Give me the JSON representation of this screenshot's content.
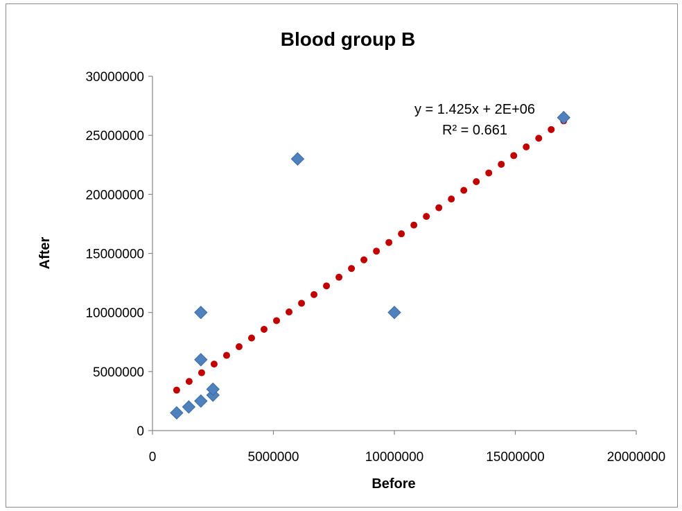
{
  "chart_data": {
    "type": "scatter",
    "title": "Blood group B",
    "xlabel": "Before",
    "ylabel": "After",
    "xlim": [
      0,
      20000000
    ],
    "ylim": [
      0,
      30000000
    ],
    "x_ticks": [
      0,
      5000000,
      10000000,
      15000000,
      20000000
    ],
    "y_ticks": [
      0,
      5000000,
      10000000,
      15000000,
      20000000,
      25000000,
      30000000
    ],
    "x_tick_labels": [
      "0",
      "5000000",
      "10000000",
      "15000000",
      "20000000"
    ],
    "y_tick_labels": [
      "0",
      "5000000",
      "10000000",
      "15000000",
      "20000000",
      "25000000",
      "30000000"
    ],
    "grid": false,
    "legend": "none",
    "series": [
      {
        "marker": "diamond",
        "color": "#4f81bd",
        "points": [
          [
            1000000,
            1500000
          ],
          [
            1500000,
            2000000
          ],
          [
            2000000,
            2500000
          ],
          [
            2000000,
            6000000
          ],
          [
            2000000,
            10000000
          ],
          [
            2500000,
            3000000
          ],
          [
            2500000,
            3500000
          ],
          [
            6000000,
            23000000
          ],
          [
            10000000,
            10000000
          ],
          [
            17000000,
            26500000
          ]
        ]
      }
    ],
    "trendline": {
      "type": "linear",
      "style": "dotted",
      "color": "#c00000",
      "slope": 1.425,
      "intercept": 2000000,
      "x_range": [
        1000000,
        17000000
      ],
      "equation_label": "y = 1.425x + 2E+06",
      "r2_label": "R² = 0.661"
    }
  }
}
